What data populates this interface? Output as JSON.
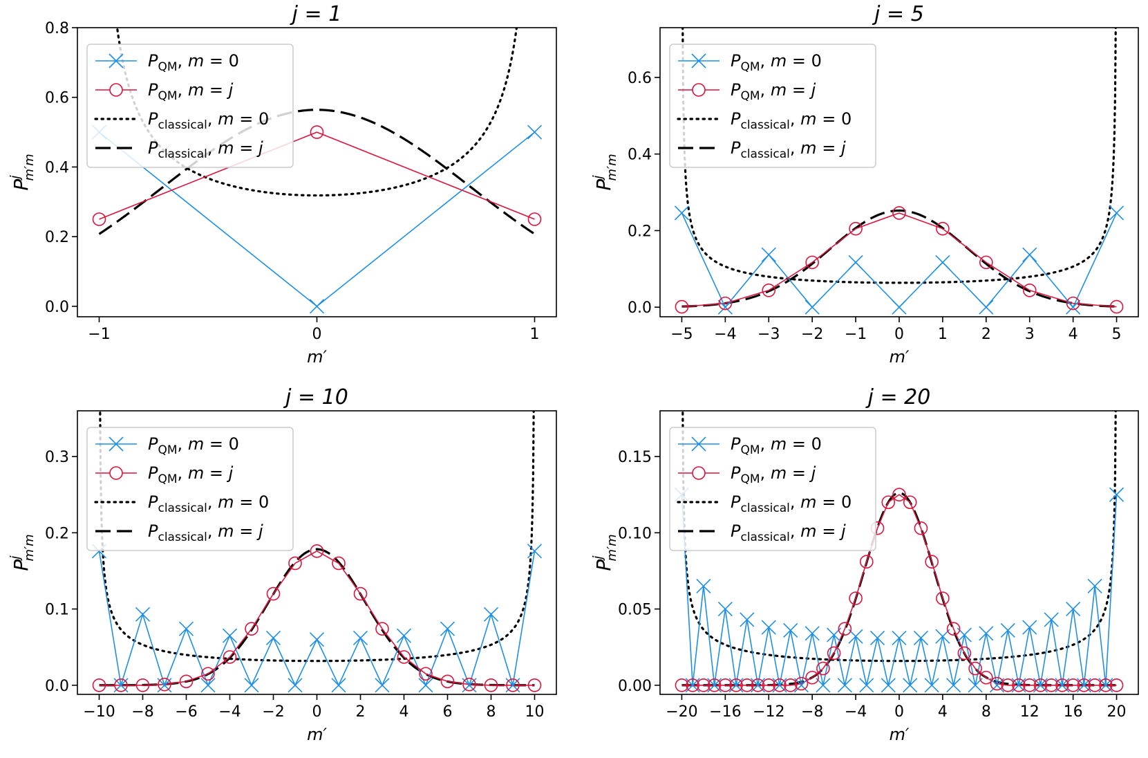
{
  "colors": {
    "qm_m0": "#1e8fe6",
    "qm_mj": "#dc143c",
    "classical": "#000000"
  },
  "legend_entries": [
    {
      "sym": "P",
      "sub": "QM",
      "cond": ", m = 0"
    },
    {
      "sym": "P",
      "sub": "QM",
      "cond": ", m = j"
    },
    {
      "sym": "P",
      "sub": "classical",
      "cond": ", m = 0"
    },
    {
      "sym": "P",
      "sub": "classical",
      "cond": ", m = j"
    }
  ],
  "ylabel": {
    "sym": "P",
    "sup": "j",
    "sub": "m′m"
  },
  "xlabel": "m′",
  "chart_data": [
    {
      "type": "line",
      "title": "j = 1",
      "j": 1,
      "xlim": [
        -1.1,
        1.1
      ],
      "ylim": [
        -0.03,
        0.8
      ],
      "xticks": [
        -1,
        0,
        1
      ],
      "xtick_labels": [
        "−1",
        "0",
        "1"
      ],
      "yticks": [
        0.0,
        0.2,
        0.4,
        0.6,
        0.8
      ],
      "ytick_labels": [
        "0.0",
        "0.2",
        "0.4",
        "0.6",
        "0.8"
      ],
      "series": [
        {
          "name": "P_QM, m = 0",
          "style": "cross",
          "x": [
            -1,
            0,
            1
          ],
          "y": [
            0.5,
            0.0,
            0.5
          ]
        },
        {
          "name": "P_QM, m = j",
          "style": "circle",
          "x": [
            -1,
            0,
            1
          ],
          "y": [
            0.25,
            0.5,
            0.25
          ]
        },
        {
          "name": "P_classical, m = 0",
          "style": "dotted",
          "curve": "arcsine",
          "x_range": [
            -1,
            1
          ],
          "scale": 1.0
        },
        {
          "name": "P_classical, m = j",
          "style": "dashed",
          "curve": "gaussian",
          "x_range": [
            -1,
            1
          ],
          "scale": 1.0
        }
      ]
    },
    {
      "type": "line",
      "title": "j = 5",
      "j": 5,
      "xlim": [
        -5.5,
        5.5
      ],
      "ylim": [
        -0.025,
        0.73
      ],
      "xticks": [
        -5,
        -4,
        -3,
        -2,
        -1,
        0,
        1,
        2,
        3,
        4,
        5
      ],
      "xtick_labels": [
        "−5",
        "−4",
        "−3",
        "−2",
        "−1",
        "0",
        "1",
        "2",
        "3",
        "4",
        "5"
      ],
      "yticks": [
        0.0,
        0.2,
        0.4,
        0.6
      ],
      "ytick_labels": [
        "0.0",
        "0.2",
        "0.4",
        "0.6"
      ],
      "series": [
        {
          "name": "P_QM, m = 0",
          "style": "cross",
          "x": [
            -5,
            -4,
            -3,
            -2,
            -1,
            0,
            1,
            2,
            3,
            4,
            5
          ],
          "y": [
            0.246,
            0.0,
            0.137,
            0.0,
            0.117,
            0.0,
            0.117,
            0.0,
            0.137,
            0.0,
            0.246
          ]
        },
        {
          "name": "P_QM, m = j",
          "style": "circle",
          "x": [
            -5,
            -4,
            -3,
            -2,
            -1,
            0,
            1,
            2,
            3,
            4,
            5
          ],
          "y": [
            0.001,
            0.01,
            0.044,
            0.117,
            0.205,
            0.246,
            0.205,
            0.117,
            0.044,
            0.01,
            0.001
          ]
        },
        {
          "name": "P_classical, m = 0",
          "style": "dotted",
          "curve": "arcsine",
          "x_range": [
            -5,
            5
          ],
          "scale": 1.0
        },
        {
          "name": "P_classical, m = j",
          "style": "dashed",
          "curve": "gaussian",
          "x_range": [
            -5,
            5
          ],
          "scale": 1.0
        }
      ]
    },
    {
      "type": "line",
      "title": "j = 10",
      "j": 10,
      "xlim": [
        -11,
        11
      ],
      "ylim": [
        -0.012,
        0.36
      ],
      "xticks": [
        -10,
        -8,
        -6,
        -4,
        -2,
        0,
        2,
        4,
        6,
        8,
        10
      ],
      "xtick_labels": [
        "−10",
        "−8",
        "−6",
        "−4",
        "−2",
        "0",
        "2",
        "4",
        "6",
        "8",
        "10"
      ],
      "yticks": [
        0.0,
        0.1,
        0.2,
        0.3
      ],
      "ytick_labels": [
        "0.0",
        "0.1",
        "0.2",
        "0.3"
      ],
      "series": [
        {
          "name": "P_QM, m = 0",
          "style": "cross",
          "x": [
            -10,
            -9,
            -8,
            -7,
            -6,
            -5,
            -4,
            -3,
            -2,
            -1,
            0,
            1,
            2,
            3,
            4,
            5,
            6,
            7,
            8,
            9,
            10
          ],
          "y": [
            0.176,
            0.0,
            0.093,
            0.0,
            0.074,
            0.0,
            0.065,
            0.0,
            0.062,
            0.0,
            0.06,
            0.0,
            0.062,
            0.0,
            0.065,
            0.0,
            0.074,
            0.0,
            0.093,
            0.0,
            0.176
          ]
        },
        {
          "name": "P_QM, m = j",
          "style": "circle",
          "x": [
            -10,
            -9,
            -8,
            -7,
            -6,
            -5,
            -4,
            -3,
            -2,
            -1,
            0,
            1,
            2,
            3,
            4,
            5,
            6,
            7,
            8,
            9,
            10
          ],
          "y": [
            0.0,
            0.0,
            0.0,
            0.001,
            0.005,
            0.015,
            0.037,
            0.074,
            0.12,
            0.16,
            0.176,
            0.16,
            0.12,
            0.074,
            0.037,
            0.015,
            0.005,
            0.001,
            0.0,
            0.0,
            0.0
          ]
        },
        {
          "name": "P_classical, m = 0",
          "style": "dotted",
          "curve": "arcsine",
          "x_range": [
            -10,
            10
          ],
          "scale": 1.0
        },
        {
          "name": "P_classical, m = j",
          "style": "dashed",
          "curve": "gaussian",
          "x_range": [
            -10,
            10
          ],
          "scale": 1.0
        }
      ]
    },
    {
      "type": "line",
      "title": "j = 20",
      "j": 20,
      "xlim": [
        -22,
        22
      ],
      "ylim": [
        -0.006,
        0.18
      ],
      "xticks": [
        -20,
        -16,
        -12,
        -8,
        -4,
        0,
        4,
        8,
        12,
        16,
        20
      ],
      "xtick_labels": [
        "−20",
        "−16",
        "−12",
        "−8",
        "−4",
        "0",
        "4",
        "8",
        "12",
        "16",
        "20"
      ],
      "yticks": [
        0.0,
        0.05,
        0.1,
        0.15
      ],
      "ytick_labels": [
        "0.00",
        "0.05",
        "0.10",
        "0.15"
      ],
      "series": [
        {
          "name": "P_QM, m = 0",
          "style": "cross",
          "x": [
            -20,
            -19,
            -18,
            -17,
            -16,
            -15,
            -14,
            -13,
            -12,
            -11,
            -10,
            -9,
            -8,
            -7,
            -6,
            -5,
            -4,
            -3,
            -2,
            -1,
            0,
            1,
            2,
            3,
            4,
            5,
            6,
            7,
            8,
            9,
            10,
            11,
            12,
            13,
            14,
            15,
            16,
            17,
            18,
            19,
            20
          ],
          "y": [
            0.125,
            0.0,
            0.065,
            0.0,
            0.05,
            0.0,
            0.043,
            0.0,
            0.038,
            0.0,
            0.036,
            0.0,
            0.034,
            0.0,
            0.033,
            0.0,
            0.032,
            0.0,
            0.031,
            0.0,
            0.031,
            0.0,
            0.031,
            0.0,
            0.032,
            0.0,
            0.033,
            0.0,
            0.034,
            0.0,
            0.036,
            0.0,
            0.038,
            0.0,
            0.043,
            0.0,
            0.05,
            0.0,
            0.065,
            0.0,
            0.125
          ]
        },
        {
          "name": "P_QM, m = j",
          "style": "circle",
          "x": [
            -20,
            -19,
            -18,
            -17,
            -16,
            -15,
            -14,
            -13,
            -12,
            -11,
            -10,
            -9,
            -8,
            -7,
            -6,
            -5,
            -4,
            -3,
            -2,
            -1,
            0,
            1,
            2,
            3,
            4,
            5,
            6,
            7,
            8,
            9,
            10,
            11,
            12,
            13,
            14,
            15,
            16,
            17,
            18,
            19,
            20
          ],
          "y": [
            0.0,
            0.0,
            0.0,
            0.0,
            0.0,
            0.0,
            0.0,
            0.0,
            0.0,
            0.0,
            0.0,
            0.001,
            0.005,
            0.011,
            0.021,
            0.037,
            0.057,
            0.081,
            0.103,
            0.12,
            0.125,
            0.12,
            0.103,
            0.081,
            0.057,
            0.037,
            0.021,
            0.011,
            0.005,
            0.001,
            0.0,
            0.0,
            0.0,
            0.0,
            0.0,
            0.0,
            0.0,
            0.0,
            0.0,
            0.0,
            0.0
          ]
        },
        {
          "name": "P_classical, m = 0",
          "style": "dotted",
          "curve": "arcsine",
          "x_range": [
            -20,
            20
          ],
          "scale": 1.0
        },
        {
          "name": "P_classical, m = j",
          "style": "dashed",
          "curve": "gaussian",
          "x_range": [
            -20,
            20
          ],
          "scale": 1.0
        }
      ]
    }
  ]
}
